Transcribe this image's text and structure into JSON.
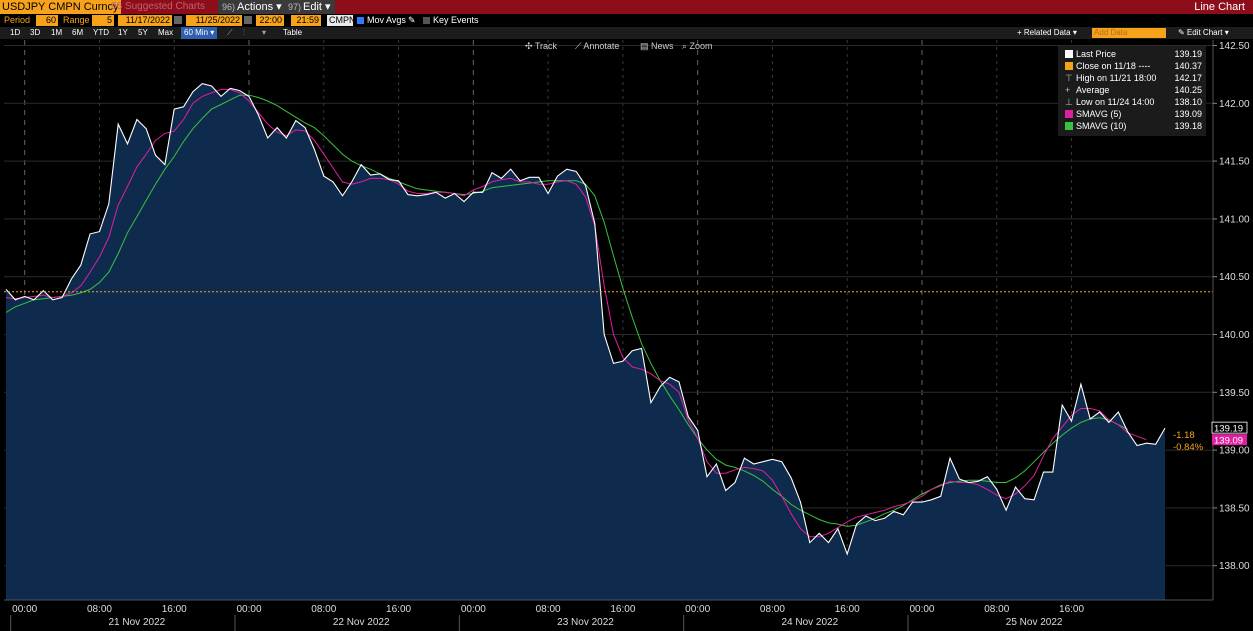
{
  "topbar": {
    "ticker": "USDJPY CMPN Curncy",
    "suggested": "96 Suggested Charts",
    "actions_num": "96)",
    "actions_label": "Actions ▾",
    "edit_num": "97)",
    "edit_label": "Edit ▾",
    "title": "Line Chart"
  },
  "controls": {
    "period_label": "Period",
    "period_value": "60",
    "range_label": "Range",
    "range_value": "5",
    "start_date": "11/17/2022",
    "end_date": "11/25/2022",
    "start_time": "22:00",
    "end_time": "21:59",
    "source": "CMPN",
    "mov_avgs": "Mov Avgs",
    "key_events": "Key Events"
  },
  "rangebar": {
    "buttons": [
      "1D",
      "3D",
      "1M",
      "6M",
      "YTD",
      "1Y",
      "5Y",
      "Max"
    ],
    "interval": "60 Min ▾",
    "table": "Table",
    "related_data": "+ Related Data ▾",
    "add_data": "Add Data",
    "edit_chart": "✎ Edit Chart ▾"
  },
  "tools": {
    "track": "Track",
    "annotate": "Annotate",
    "news": "News",
    "zoom": "Zoom"
  },
  "legend": [
    {
      "name": "Last Price",
      "value": "139.19",
      "color": "#ffffff"
    },
    {
      "name": "Close on 11/18 ----",
      "value": "140.37",
      "color": "#f7a21b"
    },
    {
      "name": "High on 11/21 18:00",
      "value": "142.17",
      "color": "#bbbbbb"
    },
    {
      "name": "Average",
      "value": "140.25",
      "color": "#bbbbbb"
    },
    {
      "name": "Low on 11/24 14:00",
      "value": "138.10",
      "color": "#bbbbbb"
    },
    {
      "name": "SMAVG (5)",
      "value": "139.09",
      "color": "#e01ea0"
    },
    {
      "name": "SMAVG (10)",
      "value": "139.18",
      "color": "#39c23e"
    }
  ],
  "tags": {
    "last": "139.19",
    "sma5": "139.09",
    "change": "-1.18",
    "change_pct": "-0.84%"
  },
  "chart_data": {
    "type": "area",
    "ylim": [
      137.75,
      142.55
    ],
    "yticks": [
      "138.00",
      "138.50",
      "139.00",
      "139.50",
      "140.00",
      "140.50",
      "141.00",
      "141.50",
      "142.00",
      "142.50"
    ],
    "xtick_labels": [
      "00:00",
      "08:00",
      "16:00",
      "00:00",
      "08:00",
      "16:00",
      "00:00",
      "08:00",
      "16:00",
      "00:00",
      "08:00",
      "16:00",
      "00:00",
      "08:00",
      "16:00"
    ],
    "day_labels": [
      "21 Nov 2022",
      "22 Nov 2022",
      "23 Nov 2022",
      "24 Nov 2022",
      "25 Nov 2022"
    ],
    "reference_line": {
      "name": "Close on 11/18",
      "value": 140.37
    },
    "series": [
      {
        "name": "Last Price",
        "color": "#ffffff",
        "values": [
          140.39,
          140.3,
          140.33,
          140.3,
          140.38,
          140.3,
          140.32,
          140.48,
          140.6,
          140.87,
          140.89,
          141.13,
          141.82,
          141.65,
          141.86,
          141.78,
          141.55,
          141.47,
          141.95,
          141.97,
          142.1,
          142.17,
          142.15,
          142.06,
          142.13,
          142.11,
          142.06,
          141.9,
          141.7,
          141.79,
          141.7,
          141.85,
          141.79,
          141.6,
          141.37,
          141.32,
          141.2,
          141.32,
          141.47,
          141.38,
          141.39,
          141.34,
          141.33,
          141.21,
          141.2,
          141.21,
          141.23,
          141.18,
          141.22,
          141.15,
          141.23,
          141.23,
          141.4,
          141.35,
          141.43,
          141.33,
          141.36,
          141.36,
          141.22,
          141.37,
          141.43,
          141.41,
          141.29,
          140.96,
          140.0,
          139.75,
          139.77,
          139.86,
          139.88,
          139.41,
          139.55,
          139.63,
          139.59,
          139.29,
          139.17,
          138.77,
          138.88,
          138.65,
          138.72,
          138.93,
          138.88,
          138.9,
          138.92,
          138.9,
          138.76,
          138.55,
          138.2,
          138.28,
          138.2,
          138.32,
          138.1,
          138.36,
          138.43,
          138.39,
          138.41,
          138.47,
          138.44,
          138.55,
          138.55,
          138.57,
          138.6,
          138.93,
          138.75,
          138.72,
          138.73,
          138.77,
          138.66,
          138.48,
          138.68,
          138.58,
          138.57,
          138.81,
          138.81,
          139.39,
          139.25,
          139.57,
          139.27,
          139.33,
          139.24,
          139.33,
          139.16,
          139.04,
          139.06,
          139.05,
          139.19
        ]
      },
      {
        "name": "SMAVG (5)",
        "color": "#e01ea0",
        "values": [
          140.32,
          140.31,
          140.32,
          140.33,
          140.34,
          140.32,
          140.33,
          140.36,
          140.42,
          140.54,
          140.67,
          140.84,
          141.12,
          141.28,
          141.45,
          141.56,
          141.68,
          141.74,
          141.76,
          141.86,
          142.0,
          142.06,
          142.09,
          142.12,
          142.12,
          142.09,
          142.02,
          141.92,
          141.82,
          141.75,
          141.72,
          141.77,
          141.76,
          141.68,
          141.56,
          141.44,
          141.32,
          141.3,
          141.32,
          141.35,
          141.35,
          141.34,
          141.3,
          141.24,
          141.22,
          141.22,
          141.23,
          141.23,
          141.22,
          141.2,
          141.25,
          141.28,
          141.32,
          141.34,
          141.35,
          141.32,
          141.32,
          141.3,
          141.3,
          141.32,
          141.33,
          141.3,
          141.19,
          140.94,
          140.42,
          140.0,
          139.8,
          139.72,
          139.7,
          139.66,
          139.6,
          139.57,
          139.5,
          139.26,
          139.1,
          138.9,
          138.8,
          138.8,
          138.83,
          138.85,
          138.84,
          138.82,
          138.74,
          138.6,
          138.45,
          138.32,
          138.25,
          138.25,
          138.28,
          138.33,
          138.38,
          138.42,
          138.44,
          138.46,
          138.48,
          138.51,
          138.53,
          138.56,
          138.6,
          138.66,
          138.69,
          138.73,
          138.72,
          138.72,
          138.7,
          138.66,
          138.61,
          138.58,
          138.62,
          138.69,
          138.78,
          138.95,
          139.1,
          139.2,
          139.3,
          139.36,
          139.36,
          139.34,
          139.26,
          139.22,
          139.15,
          139.12,
          139.09
        ]
      },
      {
        "name": "SMAVG (10)",
        "color": "#39c23e",
        "values": [
          140.19,
          140.24,
          140.27,
          140.3,
          140.31,
          140.32,
          140.33,
          140.34,
          140.36,
          140.39,
          140.45,
          140.54,
          140.7,
          140.88,
          141.02,
          141.16,
          141.3,
          141.43,
          141.54,
          141.67,
          141.78,
          141.87,
          141.95,
          141.99,
          142.03,
          142.07,
          142.07,
          142.05,
          142.02,
          141.98,
          141.93,
          141.88,
          141.83,
          141.79,
          141.72,
          141.64,
          141.56,
          141.5,
          141.46,
          141.43,
          141.39,
          141.35,
          141.32,
          141.29,
          141.26,
          141.25,
          141.24,
          141.23,
          141.22,
          141.21,
          141.22,
          141.24,
          141.27,
          141.28,
          141.29,
          141.3,
          141.31,
          141.32,
          141.33,
          141.33,
          141.33,
          141.33,
          141.3,
          141.2,
          140.97,
          140.68,
          140.4,
          140.15,
          139.92,
          139.75,
          139.6,
          139.47,
          139.35,
          139.22,
          139.1,
          139.0,
          138.92,
          138.87,
          138.85,
          138.82,
          138.78,
          138.73,
          138.66,
          138.6,
          138.53,
          138.48,
          138.44,
          138.4,
          138.37,
          138.36,
          138.34,
          138.35,
          138.38,
          138.41,
          138.45,
          138.48,
          138.52,
          138.57,
          138.62,
          138.66,
          138.7,
          138.72,
          138.73,
          138.74,
          138.74,
          138.73,
          138.72,
          138.72,
          138.76,
          138.82,
          138.9,
          138.98,
          139.06,
          139.13,
          139.19,
          139.24,
          139.27,
          139.28,
          139.26,
          139.22,
          139.18
        ]
      }
    ]
  }
}
